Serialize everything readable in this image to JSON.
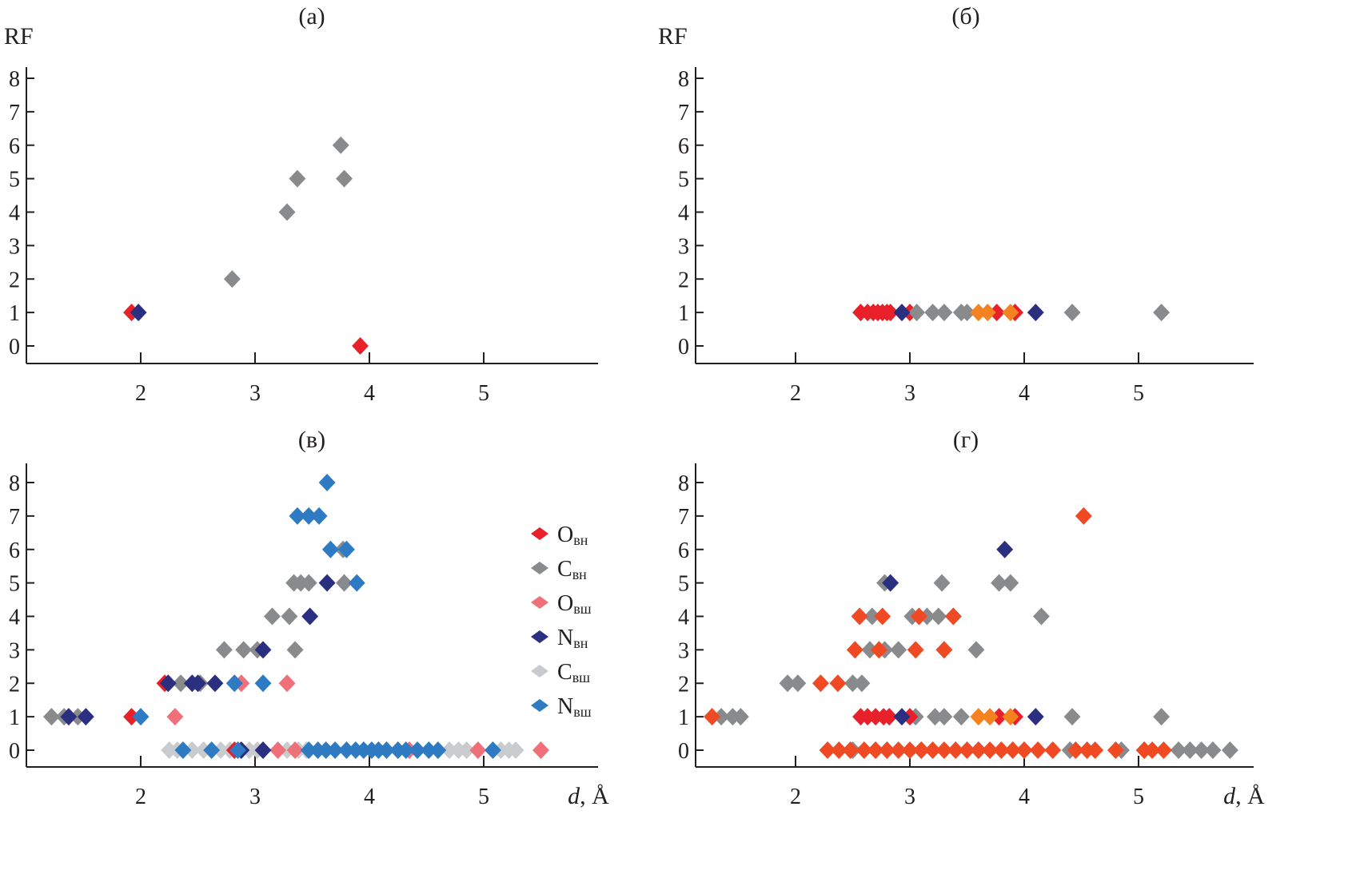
{
  "chart_data": [
    {
      "id": "a",
      "type": "scatter",
      "title": "(а)",
      "ylabel": "RF",
      "xlabel": "",
      "xlim": [
        1.0,
        5.9
      ],
      "ylim": [
        -0.5,
        8.5
      ],
      "xticks": [
        2,
        3,
        4,
        5
      ],
      "yticks": [
        0,
        1,
        2,
        3,
        4,
        5,
        6,
        7,
        8
      ],
      "grid": false,
      "series": [
        {
          "name": "O_вн",
          "color": "#E8202A",
          "points": [
            [
              1.92,
              1
            ],
            [
              3.92,
              0
            ]
          ]
        },
        {
          "name": "C_вн",
          "color": "#888A8C",
          "points": [
            [
              2.8,
              2
            ],
            [
              3.28,
              4
            ],
            [
              3.37,
              5
            ],
            [
              3.75,
              6
            ],
            [
              3.78,
              5
            ]
          ]
        },
        {
          "name": "N_вн",
          "color": "#2B2F80",
          "points": [
            [
              1.98,
              1
            ]
          ]
        }
      ]
    },
    {
      "id": "b",
      "type": "scatter",
      "title": "(б)",
      "ylabel": "RF",
      "xlabel": "",
      "xlim": [
        1.0,
        5.9
      ],
      "ylim": [
        -0.5,
        8.5
      ],
      "xticks": [
        2,
        3,
        4,
        5
      ],
      "yticks": [
        0,
        1,
        2,
        3,
        4,
        5,
        6,
        7,
        8
      ],
      "grid": false,
      "series": [
        {
          "name": "O_вн",
          "color": "#E8202A",
          "points": [
            [
              2.57,
              1
            ],
            [
              2.63,
              1
            ],
            [
              2.68,
              1
            ],
            [
              2.72,
              1
            ],
            [
              2.76,
              1
            ],
            [
              2.8,
              1
            ],
            [
              2.83,
              1
            ],
            [
              3.0,
              1
            ],
            [
              3.76,
              1
            ],
            [
              3.92,
              1
            ]
          ]
        },
        {
          "name": "C_вн",
          "color": "#888A8C",
          "points": [
            [
              3.06,
              1
            ],
            [
              3.2,
              1
            ],
            [
              3.3,
              1
            ],
            [
              3.45,
              1
            ],
            [
              3.5,
              1
            ],
            [
              4.42,
              1
            ],
            [
              5.2,
              1
            ]
          ]
        },
        {
          "name": "N_вн",
          "color": "#2B2F80",
          "points": [
            [
              2.93,
              1
            ],
            [
              4.1,
              1
            ]
          ]
        },
        {
          "name": "orange",
          "color": "#F58220",
          "points": [
            [
              3.6,
              1
            ],
            [
              3.68,
              1
            ],
            [
              3.88,
              1
            ]
          ]
        }
      ]
    },
    {
      "id": "c",
      "type": "scatter",
      "title": "(в)",
      "ylabel": "",
      "xlabel": "d, Å",
      "xlim": [
        1.0,
        5.9
      ],
      "ylim": [
        -0.5,
        8.5
      ],
      "xticks": [
        2,
        3,
        4,
        5
      ],
      "yticks": [
        0,
        1,
        2,
        3,
        4,
        5,
        6,
        7,
        8
      ],
      "grid": false,
      "legend": {
        "position": "top-right",
        "entries": [
          {
            "main": "O",
            "sub": "вн",
            "color": "#E8202A"
          },
          {
            "main": "C",
            "sub": "вн",
            "color": "#888A8C"
          },
          {
            "main": "O",
            "sub": "вш",
            "color": "#F0707A"
          },
          {
            "main": "N",
            "sub": "вн",
            "color": "#2B2F80"
          },
          {
            "main": "C",
            "sub": "вш",
            "color": "#C8CCCE"
          },
          {
            "main": "N",
            "sub": "вш",
            "color": "#2E7BC4"
          }
        ]
      },
      "series": [
        {
          "name": "C_вш",
          "color": "#C8CCCE",
          "points": [
            [
              2.25,
              0
            ],
            [
              2.32,
              0
            ],
            [
              2.45,
              0
            ],
            [
              2.55,
              0
            ],
            [
              2.7,
              0
            ],
            [
              2.78,
              0
            ],
            [
              2.95,
              0
            ],
            [
              3.02,
              0
            ],
            [
              3.28,
              0
            ],
            [
              3.38,
              0
            ],
            [
              3.45,
              0
            ],
            [
              4.7,
              0
            ],
            [
              4.78,
              0
            ],
            [
              4.85,
              0
            ],
            [
              5.15,
              0
            ],
            [
              5.22,
              0
            ],
            [
              5.28,
              0
            ]
          ]
        },
        {
          "name": "C_вн",
          "color": "#888A8C",
          "points": [
            [
              1.22,
              1
            ],
            [
              1.33,
              1
            ],
            [
              1.45,
              1
            ],
            [
              2.35,
              2
            ],
            [
              2.52,
              2
            ],
            [
              2.73,
              3
            ],
            [
              2.9,
              3
            ],
            [
              3.02,
              3
            ],
            [
              3.35,
              3
            ],
            [
              3.15,
              4
            ],
            [
              3.3,
              4
            ],
            [
              3.34,
              5
            ],
            [
              3.4,
              5
            ],
            [
              3.47,
              5
            ],
            [
              3.78,
              5
            ],
            [
              3.77,
              6
            ]
          ]
        },
        {
          "name": "O_вш",
          "color": "#F0707A",
          "points": [
            [
              2.3,
              1
            ],
            [
              2.88,
              2
            ],
            [
              3.28,
              2
            ],
            [
              3.2,
              0
            ],
            [
              3.35,
              0
            ],
            [
              4.25,
              0
            ],
            [
              4.35,
              0
            ],
            [
              4.95,
              0
            ],
            [
              5.5,
              0
            ]
          ]
        },
        {
          "name": "O_вн",
          "color": "#E8202A",
          "points": [
            [
              1.92,
              1
            ],
            [
              2.21,
              2
            ],
            [
              2.82,
              0
            ]
          ]
        },
        {
          "name": "N_вн",
          "color": "#2B2F80",
          "points": [
            [
              1.37,
              1
            ],
            [
              1.52,
              1
            ],
            [
              2.24,
              2
            ],
            [
              2.45,
              2
            ],
            [
              2.5,
              2
            ],
            [
              2.65,
              2
            ],
            [
              3.07,
              3
            ],
            [
              3.48,
              4
            ],
            [
              3.63,
              5
            ],
            [
              2.88,
              0
            ],
            [
              3.07,
              0
            ]
          ]
        },
        {
          "name": "N_вш",
          "color": "#2E7BC4",
          "points": [
            [
              2.0,
              1
            ],
            [
              2.82,
              2
            ],
            [
              3.07,
              2
            ],
            [
              2.37,
              0
            ],
            [
              2.62,
              0
            ],
            [
              2.85,
              0
            ],
            [
              3.47,
              0
            ],
            [
              3.55,
              0
            ],
            [
              3.62,
              0
            ],
            [
              3.7,
              0
            ],
            [
              3.8,
              0
            ],
            [
              3.88,
              0
            ],
            [
              3.95,
              0
            ],
            [
              4.02,
              0
            ],
            [
              4.08,
              0
            ],
            [
              4.15,
              0
            ],
            [
              4.25,
              0
            ],
            [
              4.32,
              0
            ],
            [
              4.42,
              0
            ],
            [
              4.52,
              0
            ],
            [
              4.6,
              0
            ],
            [
              5.08,
              0
            ],
            [
              3.89,
              5
            ],
            [
              3.66,
              6
            ],
            [
              3.8,
              6
            ],
            [
              3.37,
              7
            ],
            [
              3.47,
              7
            ],
            [
              3.56,
              7
            ],
            [
              3.63,
              8
            ]
          ]
        }
      ]
    },
    {
      "id": "d",
      "type": "scatter",
      "title": "(г)",
      "ylabel": "",
      "xlabel": "d, Å",
      "xlim": [
        1.0,
        5.9
      ],
      "ylim": [
        -0.5,
        8.5
      ],
      "xticks": [
        2,
        3,
        4,
        5
      ],
      "yticks": [
        0,
        1,
        2,
        3,
        4,
        5,
        6,
        7,
        8
      ],
      "grid": false,
      "series": [
        {
          "name": "C_вн",
          "color": "#888A8C",
          "points": [
            [
              1.35,
              1
            ],
            [
              1.45,
              1
            ],
            [
              1.52,
              1
            ],
            [
              1.93,
              2
            ],
            [
              2.02,
              2
            ],
            [
              2.5,
              2
            ],
            [
              2.58,
              2
            ],
            [
              2.65,
              3
            ],
            [
              2.78,
              3
            ],
            [
              2.9,
              3
            ],
            [
              3.3,
              3
            ],
            [
              3.58,
              3
            ],
            [
              2.67,
              4
            ],
            [
              3.02,
              4
            ],
            [
              3.15,
              4
            ],
            [
              3.25,
              4
            ],
            [
              3.38,
              4
            ],
            [
              4.15,
              4
            ],
            [
              2.78,
              5
            ],
            [
              3.28,
              5
            ],
            [
              3.78,
              5
            ],
            [
              3.88,
              5
            ],
            [
              3.05,
              1
            ],
            [
              3.22,
              1
            ],
            [
              3.3,
              1
            ],
            [
              3.45,
              1
            ],
            [
              4.42,
              1
            ],
            [
              5.2,
              1
            ],
            [
              2.5,
              0
            ],
            [
              2.7,
              0
            ],
            [
              3.1,
              0
            ],
            [
              3.6,
              0
            ],
            [
              4.0,
              0
            ],
            [
              4.4,
              0
            ],
            [
              4.85,
              0
            ],
            [
              5.05,
              0
            ],
            [
              5.35,
              0
            ],
            [
              5.45,
              0
            ],
            [
              5.55,
              0
            ],
            [
              5.65,
              0
            ],
            [
              5.8,
              0
            ]
          ]
        },
        {
          "name": "O_вн",
          "color": "#E8202A",
          "points": [
            [
              2.57,
              1
            ],
            [
              2.63,
              1
            ],
            [
              2.7,
              1
            ],
            [
              2.77,
              1
            ],
            [
              2.82,
              1
            ],
            [
              3.0,
              1
            ],
            [
              3.78,
              1
            ],
            [
              3.92,
              1
            ]
          ]
        },
        {
          "name": "N_вн",
          "color": "#2B2F80",
          "points": [
            [
              2.93,
              1
            ],
            [
              4.1,
              1
            ],
            [
              2.83,
              5
            ],
            [
              3.83,
              6
            ]
          ]
        },
        {
          "name": "orange",
          "color": "#F58220",
          "points": [
            [
              3.6,
              1
            ],
            [
              3.7,
              1
            ],
            [
              3.88,
              1
            ]
          ]
        },
        {
          "name": "orange-red",
          "color": "#F04A24",
          "points": [
            [
              1.27,
              1
            ],
            [
              2.22,
              2
            ],
            [
              2.37,
              2
            ],
            [
              2.52,
              3
            ],
            [
              2.73,
              3
            ],
            [
              3.05,
              3
            ],
            [
              3.3,
              3
            ],
            [
              2.56,
              4
            ],
            [
              2.76,
              4
            ],
            [
              3.08,
              4
            ],
            [
              3.38,
              4
            ],
            [
              4.52,
              7
            ],
            [
              2.28,
              0
            ],
            [
              2.38,
              0
            ],
            [
              2.48,
              0
            ],
            [
              2.6,
              0
            ],
            [
              2.7,
              0
            ],
            [
              2.8,
              0
            ],
            [
              2.9,
              0
            ],
            [
              3.0,
              0
            ],
            [
              3.1,
              0
            ],
            [
              3.2,
              0
            ],
            [
              3.3,
              0
            ],
            [
              3.4,
              0
            ],
            [
              3.5,
              0
            ],
            [
              3.6,
              0
            ],
            [
              3.7,
              0
            ],
            [
              3.8,
              0
            ],
            [
              3.9,
              0
            ],
            [
              4.0,
              0
            ],
            [
              4.12,
              0
            ],
            [
              4.25,
              0
            ],
            [
              4.45,
              0
            ],
            [
              4.55,
              0
            ],
            [
              4.62,
              0
            ],
            [
              4.8,
              0
            ],
            [
              5.05,
              0
            ],
            [
              5.12,
              0
            ],
            [
              5.22,
              0
            ]
          ]
        }
      ]
    }
  ]
}
